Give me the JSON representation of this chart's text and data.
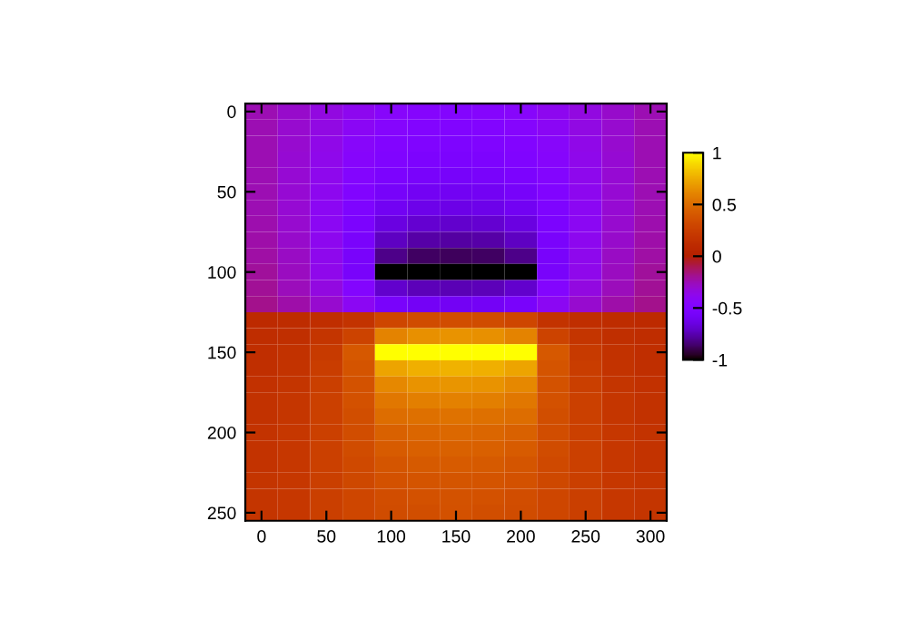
{
  "chart_data": {
    "type": "heatmap",
    "categories": [
      "0",
      null,
      "50",
      null,
      "100",
      null,
      "150",
      null,
      "200",
      null,
      "250",
      null,
      "300"
    ],
    "y_categories": [
      "0",
      null,
      null,
      null,
      null,
      "50",
      null,
      null,
      null,
      null,
      "100",
      null,
      null,
      null,
      null,
      "150",
      null,
      null,
      null,
      null,
      "200",
      null,
      null,
      null,
      null,
      "250"
    ],
    "cells": [
      [
        -0.25,
        -0.29,
        -0.34,
        -0.39,
        -0.44,
        -0.46,
        -0.47,
        -0.46,
        -0.44,
        -0.39,
        -0.34,
        -0.29,
        -0.25
      ],
      [
        -0.25,
        -0.3,
        -0.35,
        -0.41,
        -0.46,
        -0.48,
        -0.49,
        -0.48,
        -0.46,
        -0.41,
        -0.35,
        -0.3,
        -0.25
      ],
      [
        -0.25,
        -0.3,
        -0.36,
        -0.43,
        -0.48,
        -0.5,
        -0.51,
        -0.5,
        -0.48,
        -0.43,
        -0.36,
        -0.3,
        -0.25
      ],
      [
        -0.25,
        -0.31,
        -0.37,
        -0.45,
        -0.5,
        -0.52,
        -0.53,
        -0.52,
        -0.5,
        -0.45,
        -0.37,
        -0.31,
        -0.25
      ],
      [
        -0.25,
        -0.31,
        -0.38,
        -0.47,
        -0.53,
        -0.55,
        -0.56,
        -0.55,
        -0.53,
        -0.47,
        -0.38,
        -0.31,
        -0.25
      ],
      [
        -0.25,
        -0.31,
        -0.39,
        -0.49,
        -0.56,
        -0.59,
        -0.6,
        -0.59,
        -0.56,
        -0.49,
        -0.39,
        -0.31,
        -0.25
      ],
      [
        -0.25,
        -0.31,
        -0.4,
        -0.51,
        -0.6,
        -0.63,
        -0.64,
        -0.63,
        -0.6,
        -0.51,
        -0.4,
        -0.31,
        -0.25
      ],
      [
        -0.24,
        -0.3,
        -0.4,
        -0.53,
        -0.65,
        -0.69,
        -0.7,
        -0.69,
        -0.65,
        -0.53,
        -0.4,
        -0.3,
        -0.24
      ],
      [
        -0.23,
        -0.29,
        -0.39,
        -0.54,
        -0.72,
        -0.77,
        -0.78,
        -0.77,
        -0.72,
        -0.54,
        -0.39,
        -0.29,
        -0.23
      ],
      [
        -0.22,
        -0.28,
        -0.38,
        -0.55,
        -0.82,
        -0.87,
        -0.88,
        -0.87,
        -0.82,
        -0.55,
        -0.38,
        -0.28,
        -0.22
      ],
      [
        -0.21,
        -0.27,
        -0.37,
        -0.55,
        -1,
        -1,
        -1,
        -1,
        -1,
        -0.55,
        -0.37,
        -0.27,
        -0.21
      ],
      [
        -0.2,
        -0.26,
        -0.34,
        -0.47,
        -0.7,
        -0.74,
        -0.75,
        -0.74,
        -0.7,
        -0.47,
        -0.34,
        -0.26,
        -0.2
      ],
      [
        -0.18,
        -0.23,
        -0.3,
        -0.4,
        -0.55,
        -0.58,
        -0.59,
        -0.58,
        -0.55,
        -0.4,
        -0.3,
        -0.23,
        -0.18
      ],
      [
        0.1,
        0.11,
        0.13,
        0.17,
        0.3,
        0.33,
        0.34,
        0.33,
        0.3,
        0.17,
        0.13,
        0.11,
        0.1
      ],
      [
        0.12,
        0.14,
        0.18,
        0.28,
        0.6,
        0.65,
        0.66,
        0.65,
        0.6,
        0.28,
        0.18,
        0.14,
        0.12
      ],
      [
        0.13,
        0.16,
        0.22,
        0.4,
        1,
        1,
        1,
        1,
        1,
        0.4,
        0.22,
        0.16,
        0.13
      ],
      [
        0.14,
        0.17,
        0.24,
        0.38,
        0.72,
        0.76,
        0.77,
        0.76,
        0.72,
        0.38,
        0.24,
        0.17,
        0.14
      ],
      [
        0.15,
        0.18,
        0.25,
        0.37,
        0.62,
        0.66,
        0.67,
        0.66,
        0.62,
        0.37,
        0.25,
        0.18,
        0.15
      ],
      [
        0.16,
        0.19,
        0.26,
        0.36,
        0.55,
        0.58,
        0.59,
        0.58,
        0.55,
        0.36,
        0.26,
        0.19,
        0.16
      ],
      [
        0.16,
        0.19,
        0.26,
        0.35,
        0.5,
        0.52,
        0.53,
        0.52,
        0.5,
        0.35,
        0.26,
        0.19,
        0.16
      ],
      [
        0.17,
        0.2,
        0.26,
        0.34,
        0.45,
        0.47,
        0.48,
        0.47,
        0.45,
        0.34,
        0.26,
        0.2,
        0.17
      ],
      [
        0.17,
        0.2,
        0.26,
        0.33,
        0.42,
        0.44,
        0.45,
        0.44,
        0.42,
        0.33,
        0.26,
        0.2,
        0.17
      ],
      [
        0.17,
        0.2,
        0.26,
        0.32,
        0.39,
        0.41,
        0.42,
        0.41,
        0.39,
        0.32,
        0.26,
        0.2,
        0.17
      ],
      [
        0.18,
        0.2,
        0.25,
        0.31,
        0.36,
        0.38,
        0.39,
        0.38,
        0.36,
        0.31,
        0.25,
        0.2,
        0.18
      ],
      [
        0.18,
        0.2,
        0.25,
        0.3,
        0.34,
        0.36,
        0.37,
        0.36,
        0.34,
        0.3,
        0.25,
        0.2,
        0.18
      ],
      [
        0.18,
        0.2,
        0.25,
        0.3,
        0.33,
        0.35,
        0.36,
        0.35,
        0.33,
        0.3,
        0.25,
        0.2,
        0.18
      ]
    ],
    "clim": [
      -1,
      1
    ],
    "cticks": [
      -1,
      -0.5,
      0,
      0.5,
      1
    ]
  }
}
